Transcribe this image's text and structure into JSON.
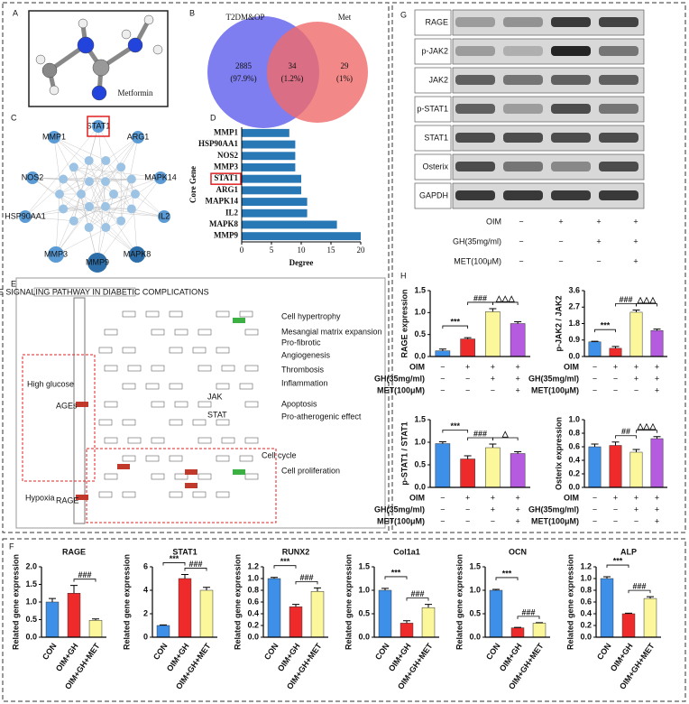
{
  "panel_labels": [
    "A",
    "B",
    "C",
    "D",
    "E",
    "F",
    "G",
    "H"
  ],
  "molecule": {
    "label": "Metformin"
  },
  "venn": {
    "sets": [
      "T2DM&OP",
      "Met"
    ],
    "regions": [
      {
        "count": "2885",
        "percent": "(97.9%)"
      },
      {
        "count": "34",
        "percent": "(1.2%)"
      },
      {
        "count": "29",
        "percent": "(1%)"
      }
    ]
  },
  "network": {
    "nodes": [
      "STAT1",
      "MMP1",
      "ARG1",
      "NOS2",
      "MAPK14",
      "HSP90AA1",
      "IL2",
      "MMP3",
      "MAPK8",
      "MMP9"
    ]
  },
  "pathway": {
    "title": "AGE-RAGE SIGNALING PATHWAY IN DIABETIC COMPLICATIONS",
    "labels": [
      "Cell hypertrophy",
      "Mesangial matrix expansion",
      "Pro-fibrotic",
      "Angiogenesis",
      "Thrombosis",
      "Inflammation",
      "Apoptosis",
      "Pro-atherogenic effect",
      "Cell cycle",
      "Cell proliferation",
      "Hypoxia",
      "High glucose",
      "AGEs",
      "RAGE",
      "JAK",
      "STAT"
    ]
  },
  "blot": {
    "rows": [
      "RAGE",
      "p-JAK2",
      "JAK2",
      "p-STAT1",
      "STAT1",
      "Osterix",
      "GAPDH"
    ],
    "conditions": [
      {
        "name": "OIM",
        "signs": [
          "−",
          "+",
          "+",
          "+"
        ]
      },
      {
        "name": "GH(35mg/ml)",
        "signs": [
          "−",
          "−",
          "+",
          "+"
        ]
      },
      {
        "name": "MET(100μM)",
        "signs": [
          "−",
          "−",
          "−",
          "+"
        ]
      }
    ]
  },
  "chart_data": [
    {
      "type": "barh",
      "xlabel": "Degree",
      "ylabel": "Core Gene",
      "color": "#2878b5",
      "categories": [
        "MMP1",
        "HSP90AA1",
        "NOS2",
        "MMP3",
        "STAT1",
        "ARG1",
        "MAPK14",
        "IL2",
        "MAPK8",
        "MMP9"
      ],
      "values": [
        8,
        9,
        9,
        9,
        10,
        10,
        11,
        11,
        16,
        20
      ],
      "xlim": [
        0,
        20
      ],
      "xticks": [
        0,
        5,
        10,
        15,
        20
      ]
    },
    {
      "type": "bar",
      "ylabel": "RAGE expression",
      "colors": [
        "#3d8fe8",
        "#ee2a2a",
        "#fbf79a",
        "#b45be0"
      ],
      "values": [
        0.13,
        0.4,
        1.02,
        0.75
      ],
      "errors": [
        0.04,
        0.03,
        0.07,
        0.04
      ],
      "ylim": [
        0,
        1.5
      ],
      "yticks": [
        {
          "value": 0,
          "label": "0.0"
        },
        0.5,
        {
          "value": 1,
          "label": "1.0"
        },
        1.5
      ],
      "annotations": [
        "***",
        "###",
        "△△△"
      ],
      "conditions": [
        {
          "name": "OIM",
          "signs": [
            "−",
            "+",
            "+",
            "+"
          ]
        },
        {
          "name": "GH(35mg/ml)",
          "signs": [
            "−",
            "−",
            "+",
            "+"
          ]
        },
        {
          "name": "MET(100μM)",
          "signs": [
            "−",
            "−",
            "−",
            "+"
          ]
        }
      ]
    },
    {
      "type": "bar",
      "ylabel": "p-JAK2 / JAK2",
      "colors": [
        "#3d8fe8",
        "#ee2a2a",
        "#fbf79a",
        "#b45be0"
      ],
      "values": [
        0.8,
        0.45,
        2.42,
        1.42
      ],
      "errors": [
        0.03,
        0.1,
        0.12,
        0.08
      ],
      "ylim": [
        0,
        3.6
      ],
      "yticks": [
        {
          "value": 0,
          "label": "0.0"
        },
        0.9,
        1.8,
        2.7,
        3.6
      ],
      "annotations": [
        "***",
        "###",
        "△△△"
      ],
      "conditions": [
        {
          "name": "OIM",
          "signs": [
            "−",
            "+",
            "+",
            "+"
          ]
        },
        {
          "name": "GH(35mg/ml)",
          "signs": [
            "−",
            "−",
            "+",
            "+"
          ]
        },
        {
          "name": "MET(100μM)",
          "signs": [
            "−",
            "−",
            "−",
            "+"
          ]
        }
      ]
    },
    {
      "type": "bar",
      "ylabel": "p-STAT1 / STAT1",
      "colors": [
        "#3d8fe8",
        "#ee2a2a",
        "#fbf79a",
        "#b45be0"
      ],
      "values": [
        0.97,
        0.63,
        0.88,
        0.75
      ],
      "errors": [
        0.04,
        0.07,
        0.08,
        0.04
      ],
      "ylim": [
        0,
        1.5
      ],
      "yticks": [
        {
          "value": 0,
          "label": "0.0"
        },
        0.5,
        {
          "value": 1,
          "label": "1.0"
        },
        1.5
      ],
      "annotations": [
        "***",
        "###",
        "△"
      ],
      "conditions": [
        {
          "name": "OIM",
          "signs": [
            "−",
            "+",
            "+",
            "+"
          ]
        },
        {
          "name": "GH(35mg/ml)",
          "signs": [
            "−",
            "−",
            "+",
            "+"
          ]
        },
        {
          "name": "MET(100μM)",
          "signs": [
            "−",
            "−",
            "−",
            "+"
          ]
        }
      ]
    },
    {
      "type": "bar",
      "ylabel": "Osterix expression",
      "colors": [
        "#3d8fe8",
        "#ee2a2a",
        "#fbf79a",
        "#b45be0"
      ],
      "values": [
        0.6,
        0.62,
        0.52,
        0.72
      ],
      "errors": [
        0.04,
        0.05,
        0.04,
        0.03
      ],
      "ylim": [
        0,
        1
      ],
      "yticks": [
        {
          "value": 0,
          "label": "0.0"
        },
        0.2,
        0.4,
        0.6,
        0.8,
        {
          "value": 1,
          "label": "1.0"
        }
      ],
      "annotations": [
        "##",
        "△△△"
      ],
      "conditions": [
        {
          "name": "OIM",
          "signs": [
            "−",
            "+",
            "+",
            "+"
          ]
        },
        {
          "name": "GH(35mg/ml)",
          "signs": [
            "−",
            "−",
            "+",
            "+"
          ]
        },
        {
          "name": "MET(100μM)",
          "signs": [
            "−",
            "−",
            "−",
            "+"
          ]
        }
      ]
    },
    {
      "type": "bar",
      "title": "RAGE",
      "ylabel": "Related gene expression",
      "categories": [
        "CON",
        "OIM+GH",
        "OIM+GH+MET"
      ],
      "colors": [
        "#3d8fe8",
        "#ee2a2a",
        "#fbf79a"
      ],
      "values": [
        1.0,
        1.25,
        0.48
      ],
      "errors": [
        0.1,
        0.22,
        0.04
      ],
      "ylim": [
        0,
        2
      ],
      "yticks": [
        {
          "value": 0,
          "label": "0.0"
        },
        0.5,
        {
          "value": 1,
          "label": "1.0"
        },
        1.5,
        {
          "value": 2,
          "label": "2.0"
        }
      ],
      "annotations": [
        "###"
      ]
    },
    {
      "type": "bar",
      "title": "STAT1",
      "ylabel": "Related gene expression",
      "categories": [
        "CON",
        "OIM+GH",
        "OIM+GH+MET"
      ],
      "colors": [
        "#3d8fe8",
        "#ee2a2a",
        "#fbf79a"
      ],
      "values": [
        1.0,
        5.0,
        4.0
      ],
      "errors": [
        0.05,
        0.35,
        0.25
      ],
      "ylim": [
        0,
        6
      ],
      "yticks": [
        0,
        2,
        4,
        6
      ],
      "annotations": [
        "***",
        "###"
      ]
    },
    {
      "type": "bar",
      "title": "RUNX2",
      "ylabel": "Related gene expression",
      "categories": [
        "CON",
        "OIM+GH",
        "OIM+GH+MET"
      ],
      "colors": [
        "#3d8fe8",
        "#ee2a2a",
        "#fbf79a"
      ],
      "values": [
        1.0,
        0.52,
        0.78
      ],
      "errors": [
        0.02,
        0.04,
        0.06
      ],
      "ylim": [
        0,
        1.2
      ],
      "yticks": [
        {
          "value": 0,
          "label": "0.0"
        },
        0.2,
        0.4,
        0.6,
        0.8,
        {
          "value": 1,
          "label": "1.0"
        },
        1.2
      ],
      "annotations": [
        "***",
        "###"
      ]
    },
    {
      "type": "bar",
      "title": "Col1a1",
      "ylabel": "Related gene expression",
      "categories": [
        "CON",
        "OIM+GH",
        "OIM+GH+MET"
      ],
      "colors": [
        "#3d8fe8",
        "#ee2a2a",
        "#fbf79a"
      ],
      "values": [
        1.0,
        0.3,
        0.63
      ],
      "errors": [
        0.04,
        0.05,
        0.07
      ],
      "ylim": [
        0,
        1.5
      ],
      "yticks": [
        {
          "value": 0,
          "label": "0.0"
        },
        0.5,
        {
          "value": 1,
          "label": "1.0"
        },
        1.5
      ],
      "annotations": [
        "***",
        "###"
      ]
    },
    {
      "type": "bar",
      "title": "OCN",
      "ylabel": "Related gene expression",
      "categories": [
        "CON",
        "OIM+GH",
        "OIM+GH+MET"
      ],
      "colors": [
        "#3d8fe8",
        "#ee2a2a",
        "#fbf79a"
      ],
      "values": [
        1.0,
        0.2,
        0.3
      ],
      "errors": [
        0.02,
        0.01,
        0.01
      ],
      "ylim": [
        0,
        1.5
      ],
      "yticks": [
        {
          "value": 0,
          "label": "0.0"
        },
        0.5,
        {
          "value": 1,
          "label": "1.0"
        },
        1.5
      ],
      "annotations": [
        "***",
        "###"
      ]
    },
    {
      "type": "bar",
      "title": "ALP",
      "ylabel": "Related gene expression",
      "categories": [
        "CON",
        "OIM+GH",
        "OIM+GH+MET"
      ],
      "colors": [
        "#3d8fe8",
        "#ee2a2a",
        "#fbf79a"
      ],
      "values": [
        1.0,
        0.4,
        0.66
      ],
      "errors": [
        0.03,
        0.01,
        0.03
      ],
      "ylim": [
        0,
        1.2
      ],
      "yticks": [
        {
          "value": 0,
          "label": "0.0"
        },
        0.2,
        0.4,
        0.6,
        0.8,
        {
          "value": 1,
          "label": "1.0"
        },
        1.2
      ],
      "annotations": [
        "***",
        "###"
      ]
    }
  ]
}
